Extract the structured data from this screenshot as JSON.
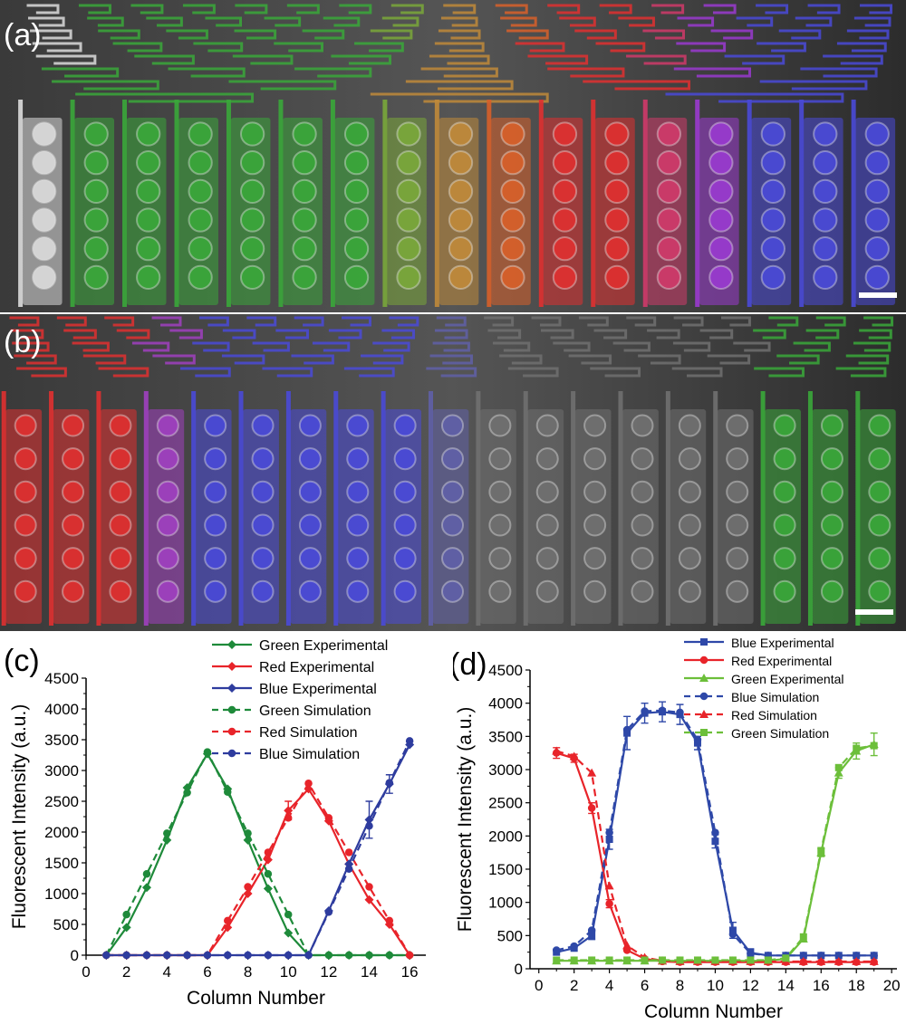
{
  "panels": {
    "a": {
      "label": "(a)"
    },
    "b": {
      "label": "(b)"
    },
    "c": {
      "label": "(c)"
    },
    "d": {
      "label": "(d)"
    }
  },
  "photos": {
    "a": {
      "column_colors": [
        "#dcdcdc",
        "#3aa83a",
        "#3aa83a",
        "#3aa83a",
        "#3aa83a",
        "#3aa83a",
        "#3aa83a",
        "#7aa83a",
        "#c08a3a",
        "#d8602a",
        "#e03030",
        "#e03030",
        "#d03a6a",
        "#9a3ad0",
        "#4a4ad8",
        "#4a4ad8",
        "#4a4ad8"
      ]
    },
    "b": {
      "column_colors": [
        "#e03030",
        "#e03030",
        "#e03030",
        "#a040c0",
        "#4a4ad8",
        "#4a4ad8",
        "#4a4ad8",
        "#4a4ad8",
        "#4a4ad8",
        "#6060a8",
        "#707070",
        "#707070",
        "#707070",
        "#707070",
        "#707070",
        "#707070",
        "#3aa83a",
        "#3aa83a",
        "#3aa83a"
      ]
    }
  },
  "chart_data": [
    {
      "type": "line",
      "panel": "c",
      "xlabel": "Column Number",
      "ylabel": "Fluorescent Intensity (a.u.)",
      "xlim": [
        0,
        16.8
      ],
      "ylim": [
        0,
        4500
      ],
      "xticks": [
        0,
        2,
        4,
        6,
        8,
        10,
        12,
        14,
        16
      ],
      "yticks": [
        0,
        500,
        1000,
        1500,
        2000,
        2500,
        3000,
        3500,
        4000,
        4500
      ],
      "x": [
        1,
        2,
        3,
        4,
        5,
        6,
        7,
        8,
        9,
        10,
        11,
        12,
        13,
        14,
        15,
        16
      ],
      "legend_position": "top-right",
      "series": [
        {
          "name": "Green Experimental",
          "color": "#1e8a3a",
          "style": "solid",
          "marker": "diamond",
          "values": [
            0,
            450,
            1100,
            1870,
            2720,
            3270,
            2700,
            1870,
            1080,
            360,
            0,
            0,
            0,
            0,
            0,
            0
          ]
        },
        {
          "name": "Red Experimental",
          "color": "#e8242a",
          "style": "solid",
          "marker": "diamond",
          "values": [
            0,
            0,
            0,
            0,
            0,
            0,
            450,
            1000,
            1550,
            2350,
            2700,
            2180,
            1480,
            900,
            500,
            0
          ]
        },
        {
          "name": "Blue Experimental",
          "color": "#2e3c9e",
          "style": "solid",
          "marker": "diamond",
          "values": [
            0,
            0,
            0,
            0,
            0,
            0,
            0,
            0,
            0,
            0,
            0,
            720,
            1480,
            2200,
            2780,
            3420
          ]
        },
        {
          "name": "Green Simulation",
          "color": "#1e8a3a",
          "style": "dashed",
          "marker": "circle",
          "values": [
            0,
            660,
            1320,
            1980,
            2640,
            3300,
            2650,
            1980,
            1320,
            660,
            0,
            0,
            0,
            0,
            0,
            0
          ]
        },
        {
          "name": "Red Simulation",
          "color": "#e8242a",
          "style": "dashed",
          "marker": "circle",
          "values": [
            0,
            0,
            0,
            0,
            0,
            0,
            560,
            1110,
            1670,
            2230,
            2790,
            2230,
            1670,
            1110,
            560,
            0
          ]
        },
        {
          "name": "Blue Simulation",
          "color": "#2e3c9e",
          "style": "dashed",
          "marker": "circle",
          "values": [
            0,
            0,
            0,
            0,
            0,
            0,
            0,
            0,
            0,
            0,
            0,
            700,
            1400,
            2100,
            2800,
            3480
          ]
        }
      ],
      "error_bars": [
        {
          "series": "Red Experimental",
          "x": 10,
          "err": 150
        },
        {
          "series": "Blue Experimental",
          "x": 14,
          "err": 300
        },
        {
          "series": "Blue Experimental",
          "x": 15,
          "err": 150
        }
      ]
    },
    {
      "type": "line",
      "panel": "d",
      "xlabel": "Column Number",
      "ylabel": "Fluorescent Intensity (a.u.)",
      "xlim": [
        -0.5,
        20.3
      ],
      "ylim": [
        0,
        4500
      ],
      "xticks": [
        0,
        2,
        4,
        6,
        8,
        10,
        12,
        14,
        16,
        18,
        20
      ],
      "yticks": [
        0,
        500,
        1000,
        1500,
        2000,
        2500,
        3000,
        3500,
        4000,
        4500
      ],
      "x": [
        1,
        2,
        3,
        4,
        5,
        6,
        7,
        8,
        9,
        10,
        11,
        12,
        13,
        14,
        15,
        16,
        17,
        18,
        19
      ],
      "legend_position": "top-right",
      "series": [
        {
          "name": "Blue Experimental",
          "color": "#2e48a8",
          "style": "solid",
          "marker": "square",
          "values": [
            250,
            310,
            500,
            1950,
            3550,
            3850,
            3870,
            3830,
            3400,
            1920,
            580,
            240,
            200,
            200,
            200,
            200,
            200,
            200,
            200
          ],
          "errors": [
            40,
            40,
            60,
            150,
            250,
            150,
            150,
            150,
            100,
            100,
            120,
            60,
            30,
            30,
            30,
            30,
            30,
            30,
            30
          ]
        },
        {
          "name": "Red Experimental",
          "color": "#e8242a",
          "style": "solid",
          "marker": "circle",
          "values": [
            3250,
            3170,
            2420,
            980,
            280,
            150,
            110,
            100,
            100,
            100,
            100,
            100,
            100,
            100,
            100,
            100,
            100,
            100,
            100
          ],
          "errors": [
            80,
            60,
            80,
            60,
            30,
            20,
            20,
            20,
            20,
            20,
            20,
            20,
            20,
            20,
            20,
            20,
            20,
            20,
            20
          ]
        },
        {
          "name": "Green Experimental",
          "color": "#6cbf3a",
          "style": "solid",
          "marker": "triangle",
          "values": [
            120,
            120,
            120,
            120,
            120,
            120,
            120,
            120,
            120,
            120,
            120,
            120,
            120,
            150,
            450,
            1750,
            2950,
            3280,
            3380
          ],
          "errors": [
            20,
            20,
            20,
            20,
            20,
            20,
            20,
            20,
            20,
            20,
            20,
            20,
            20,
            20,
            40,
            60,
            80,
            120,
            170
          ]
        },
        {
          "name": "Blue Simulation",
          "color": "#2e48a8",
          "style": "dashed",
          "marker": "circle",
          "values": [
            280,
            340,
            580,
            2050,
            3600,
            3880,
            3890,
            3860,
            3450,
            2050,
            520,
            230,
            200,
            200,
            200,
            200,
            200,
            200,
            200
          ]
        },
        {
          "name": "Red Simulation",
          "color": "#e8242a",
          "style": "dashed",
          "marker": "triangle",
          "values": [
            3280,
            3200,
            2950,
            1250,
            350,
            170,
            120,
            110,
            110,
            110,
            110,
            110,
            110,
            110,
            110,
            110,
            110,
            110,
            110
          ]
        },
        {
          "name": "Green Simulation",
          "color": "#6cbf3a",
          "style": "dashed",
          "marker": "square",
          "values": [
            130,
            130,
            130,
            130,
            130,
            130,
            130,
            130,
            130,
            130,
            130,
            130,
            130,
            160,
            480,
            1780,
            3030,
            3320,
            3360
          ]
        }
      ]
    }
  ]
}
